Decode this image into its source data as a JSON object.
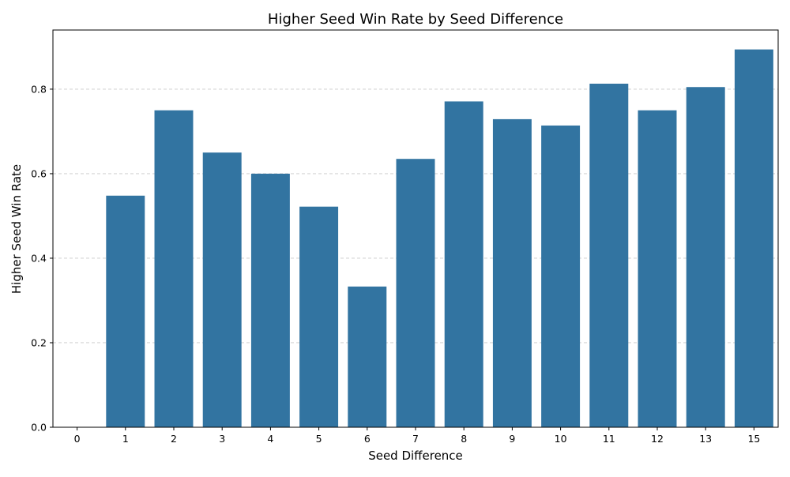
{
  "chart_data": {
    "type": "bar",
    "title": "Higher Seed Win Rate by Seed Difference",
    "xlabel": "Seed Difference",
    "ylabel": "Higher Seed Win Rate",
    "categories": [
      "0",
      "1",
      "2",
      "3",
      "4",
      "5",
      "6",
      "7",
      "8",
      "9",
      "10",
      "11",
      "12",
      "13",
      "15"
    ],
    "values": [
      0.0,
      0.548,
      0.75,
      0.65,
      0.6,
      0.522,
      0.333,
      0.635,
      0.771,
      0.729,
      0.714,
      0.813,
      0.75,
      0.805,
      0.894
    ],
    "ylim": [
      0,
      0.94
    ],
    "yticks": [
      "0.0",
      "0.2",
      "0.4",
      "0.6",
      "0.8"
    ],
    "ytick_values": [
      0,
      0.2,
      0.4,
      0.6,
      0.8
    ],
    "grid": "y-dashed",
    "bar_color": "#3274a1",
    "grid_color": "#c8c8c8"
  }
}
